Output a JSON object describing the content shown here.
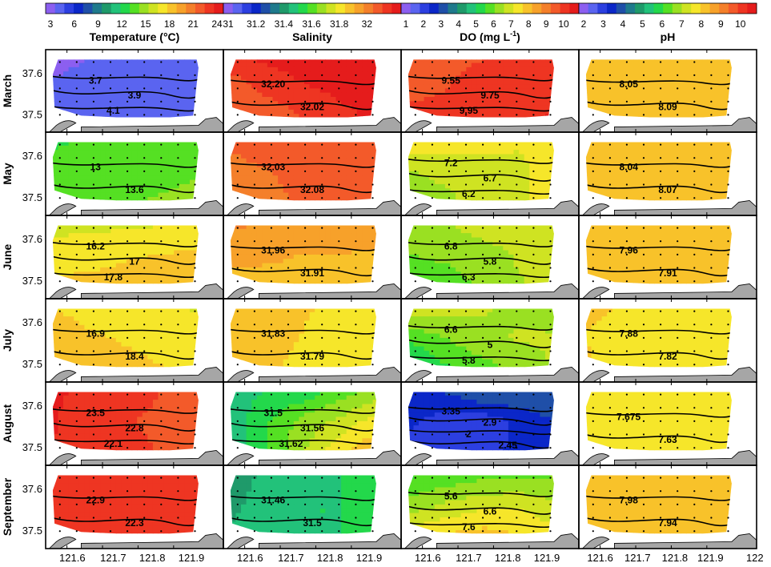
{
  "figure": {
    "columns": [
      {
        "title": "Temperature (°C)",
        "ticks": [
          "3",
          "6",
          "9",
          "12",
          "15",
          "18",
          "21",
          "24"
        ],
        "range": [
          3,
          24
        ]
      },
      {
        "title": "Salinity",
        "ticks": [
          "31",
          "31.2",
          "31.4",
          "31.6",
          "31.8",
          "32"
        ],
        "range": [
          31,
          32.2
        ]
      },
      {
        "title": "DO (mg L",
        "title_sup": "-1",
        "title_end": ")",
        "ticks": [
          "1",
          "2",
          "3",
          "4",
          "5",
          "6",
          "7",
          "8",
          "9",
          "10"
        ],
        "range": [
          1,
          10.5
        ]
      },
      {
        "title": "pH",
        "ticks": [
          "2",
          "3",
          "4",
          "5",
          "6",
          "7",
          "8",
          "9",
          "10"
        ],
        "range": [
          2,
          10.5
        ]
      }
    ],
    "rows": [
      "March",
      "May",
      "June",
      "July",
      "August",
      "September"
    ],
    "lat_ticks": [
      "37.6",
      "37.5"
    ],
    "lon_ticks": [
      "121.6",
      "121.7",
      "121.8",
      "121.9"
    ],
    "lon_ticks_last": [
      "121.6",
      "121.7",
      "121.8",
      "121.9",
      "122"
    ],
    "colors": {
      "black": "#000000",
      "land": "#a6a6a6"
    }
  },
  "chart_data": {
    "type": "heatmap",
    "colormap": [
      "#8c5ff0",
      "#5a64f0",
      "#2c3fe0",
      "#0b27c8",
      "#1f4fa8",
      "#1f7a8c",
      "#1f9a6a",
      "#22c27a",
      "#23d84b",
      "#55e023",
      "#9ae022",
      "#cfe322",
      "#f6e62a",
      "#f8c22a",
      "#f7a12a",
      "#f47f2a",
      "#f35a2a",
      "#ee3522",
      "#e51c1c"
    ],
    "panels": [
      [
        {
          "month": "March",
          "variable": "Temperature",
          "field": [
            [
              3.4,
              3.6,
              3.6,
              3.7,
              3.8
            ],
            [
              3.7,
              3.8,
              3.9,
              3.9,
              4.0
            ],
            [
              4.0,
              4.1,
              4.1,
              4.2,
              4.3
            ]
          ],
          "labels": [
            "3.7",
            "3.9",
            "4.1"
          ]
        },
        {
          "month": "March",
          "variable": "Salinity",
          "field": [
            [
              32.15,
              32.18,
              32.2,
              32.21,
              32.22
            ],
            [
              32.05,
              32.12,
              32.16,
              32.18,
              32.2
            ],
            [
              32.02,
              32.05,
              32.1,
              32.15,
              32.18
            ]
          ],
          "labels": [
            "32.20",
            "32.02"
          ]
        },
        {
          "month": "March",
          "variable": "DO",
          "field": [
            [
              9.5,
              9.6,
              9.7,
              9.9,
              10.1
            ],
            [
              9.5,
              9.7,
              9.85,
              10.0,
              10.2
            ],
            [
              9.9,
              9.95,
              10.0,
              10.1,
              10.3
            ]
          ],
          "labels": [
            "9.55",
            "9.75",
            "9.95"
          ]
        },
        {
          "month": "March",
          "variable": "pH",
          "field": [
            [
              8.0,
              8.0,
              8.05,
              8.05,
              8.05
            ],
            [
              8.05,
              8.07,
              8.09,
              8.1,
              8.1
            ],
            [
              8.05,
              8.09,
              8.12,
              8.15,
              8.15
            ]
          ],
          "labels": [
            "8.05",
            "8.09"
          ]
        }
      ],
      [
        {
          "month": "May",
          "variable": "Temperature",
          "field": [
            [
              12.8,
              13.0,
              13.0,
              13.2,
              13.5
            ],
            [
              13.2,
              13.4,
              13.6,
              13.8,
              14.0
            ],
            [
              13.6,
              13.8,
              14.0,
              14.2,
              14.4
            ]
          ],
          "labels": [
            "13",
            "13.6"
          ]
        },
        {
          "month": "May",
          "variable": "Salinity",
          "field": [
            [
              32.04,
              32.06,
              32.08,
              32.09,
              32.1
            ],
            [
              32.02,
              32.03,
              32.05,
              32.07,
              32.08
            ],
            [
              32.0,
              32.02,
              32.04,
              32.06,
              32.08
            ]
          ],
          "labels": [
            "32.03",
            "32.08"
          ]
        },
        {
          "month": "May",
          "variable": "DO",
          "field": [
            [
              7.6,
              7.4,
              7.2,
              7.1,
              7.3
            ],
            [
              6.5,
              6.7,
              6.9,
              7.0,
              7.2
            ],
            [
              6.2,
              6.4,
              6.8,
              7.0,
              7.3
            ]
          ],
          "labels": [
            "7.2",
            "6.7",
            "6.2"
          ]
        },
        {
          "month": "May",
          "variable": "pH",
          "field": [
            [
              8.0,
              8.01,
              8.02,
              8.03,
              8.05
            ],
            [
              8.02,
              8.03,
              8.04,
              8.06,
              8.08
            ],
            [
              8.02,
              8.04,
              8.06,
              8.08,
              8.1
            ]
          ],
          "labels": [
            "8.04",
            "8.07"
          ]
        }
      ],
      [
        {
          "month": "June",
          "variable": "Temperature",
          "field": [
            [
              16.0,
              16.2,
              16.2,
              16.4,
              16.6
            ],
            [
              17.0,
              17.0,
              17.4,
              17.6,
              17.8
            ],
            [
              17.8,
              18.0,
              18.2,
              18.4,
              18.4
            ]
          ],
          "labels": [
            "16.2",
            "17",
            "17.8"
          ]
        },
        {
          "month": "June",
          "variable": "Salinity",
          "field": [
            [
              31.98,
              31.96,
              31.96,
              31.95,
              31.94
            ],
            [
              31.92,
              31.91,
              31.9,
              31.9,
              31.89
            ],
            [
              31.88,
              31.88,
              31.87,
              31.87,
              31.86
            ]
          ],
          "labels": [
            "31.96",
            "31.91"
          ]
        },
        {
          "month": "June",
          "variable": "DO",
          "field": [
            [
              6.4,
              6.5,
              6.8,
              6.9,
              7.0
            ],
            [
              6.0,
              6.2,
              6.3,
              6.6,
              6.8
            ],
            [
              5.2,
              5.6,
              6.2,
              6.5,
              6.7
            ]
          ],
          "labels": [
            "6.8",
            "5.8",
            "6.3"
          ]
        },
        {
          "month": "June",
          "variable": "pH",
          "field": [
            [
              7.94,
              7.95,
              7.96,
              7.98,
              8.0
            ],
            [
              7.92,
              7.93,
              7.95,
              7.96,
              7.97
            ],
            [
              7.91,
              7.91,
              7.93,
              7.94,
              7.95
            ]
          ],
          "labels": [
            "7.96",
            "7.91"
          ]
        }
      ],
      [
        {
          "month": "July",
          "variable": "Temperature",
          "field": [
            [
              17.6,
              17.0,
              16.9,
              16.6,
              16.3
            ],
            [
              18.4,
              17.8,
              17.4,
              17.0,
              16.8
            ],
            [
              18.6,
              18.4,
              18.0,
              17.6,
              17.4
            ]
          ],
          "labels": [
            "16.9",
            "18.4"
          ]
        },
        {
          "month": "July",
          "variable": "Salinity",
          "field": [
            [
              31.88,
              31.86,
              31.84,
              31.82,
              31.8
            ],
            [
              31.88,
              31.85,
              31.83,
              31.8,
              31.79
            ],
            [
              31.86,
              31.84,
              31.82,
              31.8,
              31.78
            ]
          ],
          "labels": [
            "31.83",
            "31.79"
          ]
        },
        {
          "month": "July",
          "variable": "DO",
          "field": [
            [
              6.8,
              6.8,
              6.6,
              6.4,
              6.3
            ],
            [
              5.6,
              6.0,
              6.4,
              6.6,
              6.6
            ],
            [
              4.8,
              5.4,
              5.8,
              6.2,
              6.6
            ]
          ],
          "labels": [
            "6.6",
            "5",
            "5.8"
          ]
        },
        {
          "month": "July",
          "variable": "pH",
          "field": [
            [
              7.92,
              7.9,
              7.88,
              7.86,
              7.88
            ],
            [
              7.9,
              7.86,
              7.82,
              7.82,
              7.85
            ],
            [
              7.92,
              7.86,
              7.8,
              7.82,
              7.85
            ]
          ],
          "labels": [
            "7.88",
            "7.82"
          ]
        }
      ],
      [
        {
          "month": "August",
          "variable": "Temperature",
          "field": [
            [
              23.6,
              23.2,
              22.6,
              22.2,
              22.0
            ],
            [
              23.5,
              22.8,
              22.3,
              22.1,
              22.0
            ],
            [
              23.4,
              22.8,
              22.4,
              22.2,
              22.0
            ]
          ],
          "labels": [
            "23.5",
            "22.8",
            "22.1"
          ]
        },
        {
          "month": "August",
          "variable": "Salinity",
          "field": [
            [
              31.48,
              31.5,
              31.52,
              31.6,
              31.66
            ],
            [
              31.45,
              31.56,
              31.66,
              31.72,
              31.8
            ],
            [
              31.44,
              31.56,
              31.7,
              31.82,
              31.9
            ]
          ],
          "labels": [
            "31.5",
            "31.56",
            "31.62"
          ]
        },
        {
          "month": "August",
          "variable": "DO",
          "field": [
            [
              2.6,
              2.9,
              3.35,
              3.4,
              3.2
            ],
            [
              2.4,
              2.1,
              2.0,
              2.45,
              2.9
            ],
            [
              2.2,
              2.0,
              2.1,
              2.45,
              2.8
            ]
          ],
          "labels": [
            "3.35",
            "2.9",
            "2",
            "2.45"
          ]
        },
        {
          "month": "August",
          "variable": "pH",
          "field": [
            [
              7.65,
              7.66,
              7.68,
              7.7,
              7.7
            ],
            [
              7.64,
              7.66,
              7.675,
              7.67,
              7.65
            ],
            [
              7.62,
              7.63,
              7.63,
              7.64,
              7.66
            ]
          ],
          "labels": [
            "7.675",
            "7.63"
          ]
        }
      ],
      [
        {
          "month": "September",
          "variable": "Temperature",
          "field": [
            [
              22.8,
              22.9,
              22.9,
              22.9,
              22.9
            ],
            [
              22.4,
              22.6,
              22.7,
              22.8,
              22.8
            ],
            [
              22.2,
              22.3,
              22.5,
              22.6,
              22.7
            ]
          ],
          "labels": [
            "22.9",
            "22.3"
          ]
        },
        {
          "month": "September",
          "variable": "Salinity",
          "field": [
            [
              31.4,
              31.45,
              31.48,
              31.5,
              31.55
            ],
            [
              31.42,
              31.46,
              31.5,
              31.5,
              31.52
            ],
            [
              31.44,
              31.46,
              31.5,
              31.5,
              31.5
            ]
          ],
          "labels": [
            "31.46",
            "31.5"
          ]
        },
        {
          "month": "September",
          "variable": "DO",
          "field": [
            [
              5.4,
              5.6,
              5.8,
              5.8,
              6.0
            ],
            [
              6.2,
              6.6,
              6.9,
              7.0,
              6.6
            ],
            [
              7.4,
              7.6,
              7.8,
              7.6,
              7.2
            ]
          ],
          "labels": [
            "5.6",
            "6.6",
            "7.6"
          ]
        },
        {
          "month": "September",
          "variable": "pH",
          "field": [
            [
              7.96,
              7.97,
              7.98,
              7.98,
              7.99
            ],
            [
              7.94,
              7.95,
              7.96,
              7.97,
              7.98
            ],
            [
              7.92,
              7.93,
              7.94,
              7.95,
              7.96
            ]
          ],
          "labels": [
            "7.98",
            "7.94"
          ]
        }
      ]
    ]
  }
}
